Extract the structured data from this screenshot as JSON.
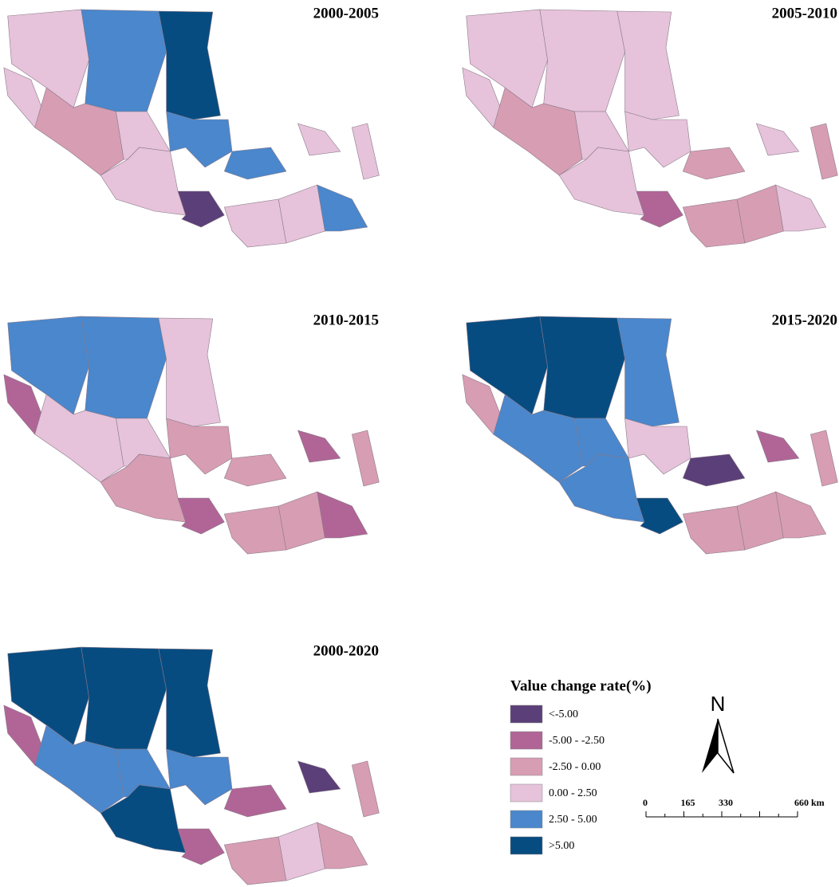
{
  "panels": [
    {
      "title": "2000-2005"
    },
    {
      "title": "2005-2010"
    },
    {
      "title": "2010-2015"
    },
    {
      "title": "2015-2020"
    },
    {
      "title": "2000-2020"
    }
  ],
  "legend": {
    "title": "Value change rate(%)",
    "items": [
      {
        "label": "<-5.00",
        "color": "#5b3f78"
      },
      {
        "label": "-5.00 - -2.50",
        "color": "#b06596"
      },
      {
        "label": "-2.50 - 0.00",
        "color": "#d79db3"
      },
      {
        "label": "0.00 - 2.50",
        "color": "#e6c3da"
      },
      {
        "label": "2.50 - 5.00",
        "color": "#4a87cc"
      },
      {
        "label": ">5.00",
        "color": "#074c80"
      }
    ]
  },
  "north": "N",
  "scale": {
    "labels": [
      "0",
      "165",
      "330",
      "660 km"
    ]
  }
}
